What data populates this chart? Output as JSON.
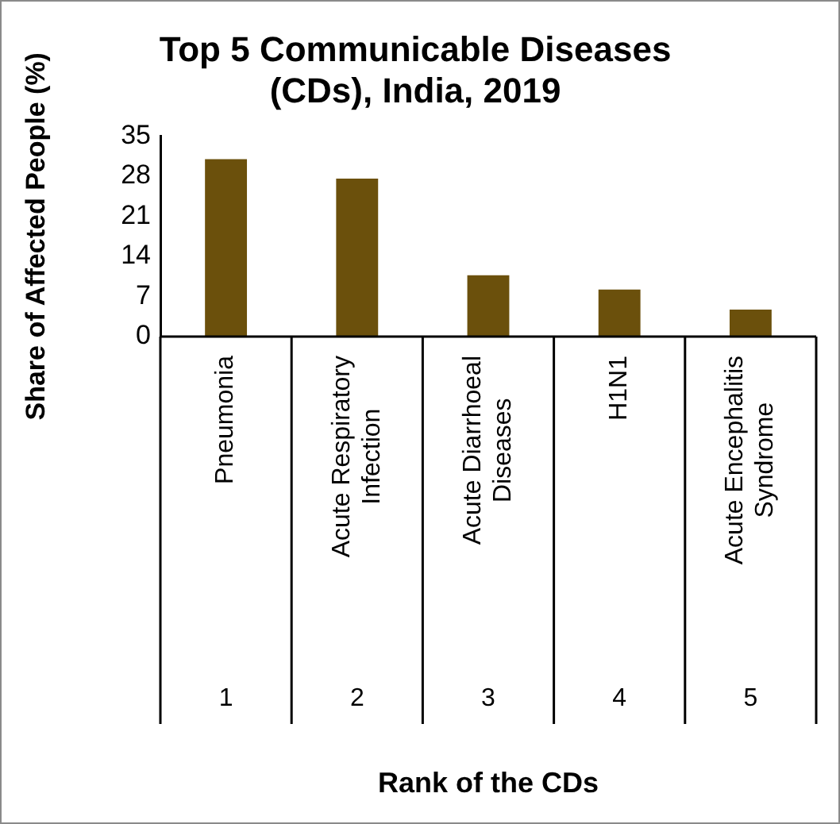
{
  "chart_data": {
    "type": "bar",
    "title": "Top 5 Communicable Diseases (CDs), India, 2019",
    "ylabel": "Share of Affected People (%)",
    "categories": [
      "Pneumonia",
      "Acute Respiratory Infection",
      "Acute Diarrhoeal Diseases",
      "H1N1",
      "Acute Encephalitis Syndrome"
    ],
    "values": [
      31.0,
      27.6,
      10.7,
      8.2,
      4.7
    ],
    "color": "#6b500c",
    "ylim": [
      0,
      35
    ],
    "yticks": [
      0,
      7,
      14,
      21,
      28,
      35
    ],
    "grid": false,
    "legend": false,
    "annotations": [
      "1",
      "2",
      "3",
      "4",
      "5",
      "Rank of the CDs"
    ]
  }
}
